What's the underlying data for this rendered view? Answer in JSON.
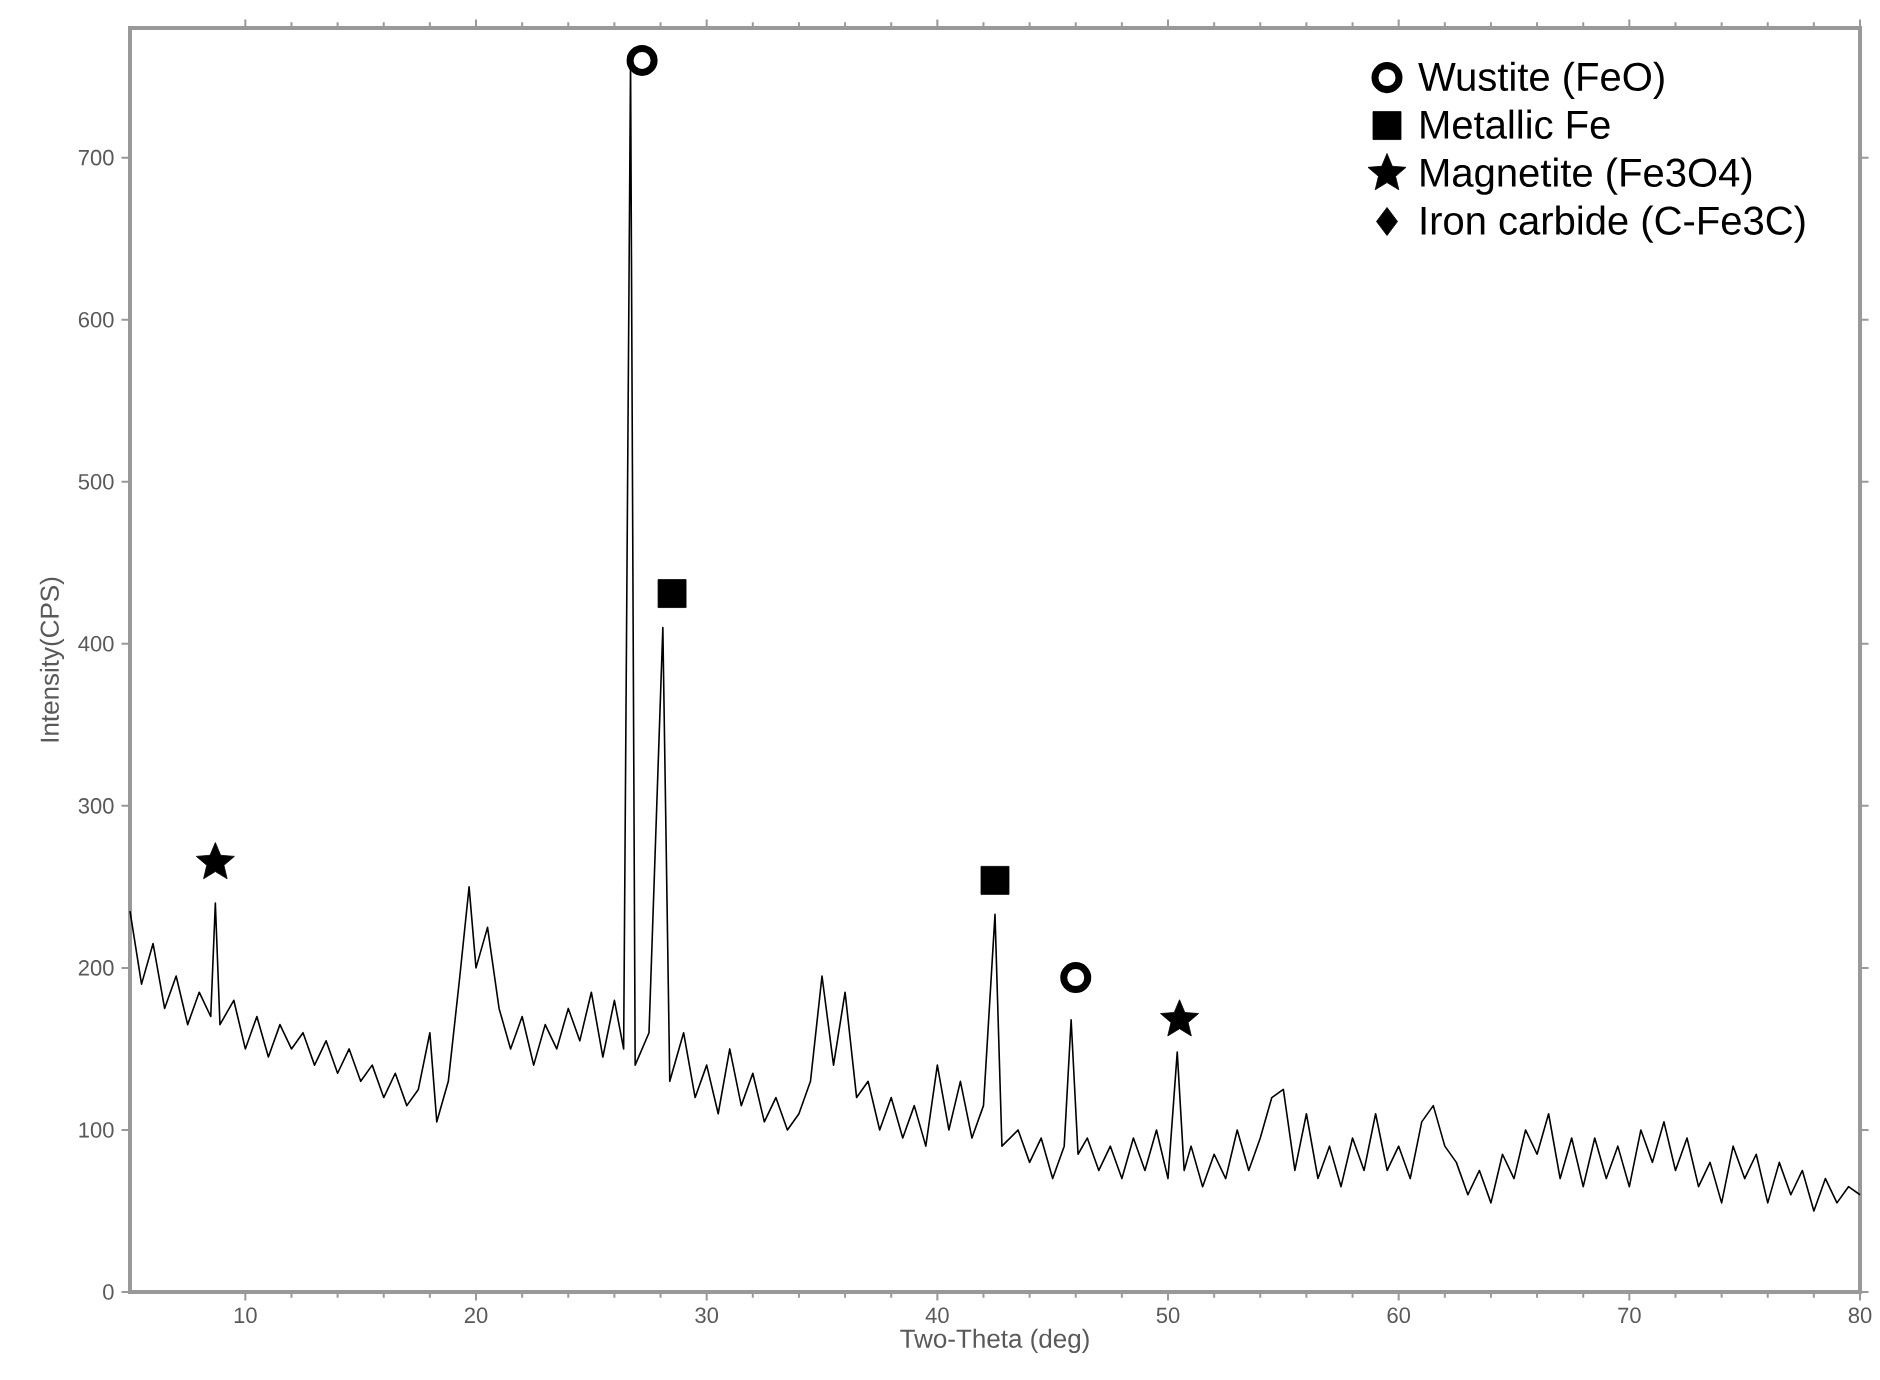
{
  "chart_data": {
    "type": "line",
    "xlabel": "Two-Theta (deg)",
    "ylabel": "Intensity(CPS)",
    "xlim": [
      5,
      80
    ],
    "ylim": [
      0,
      780
    ],
    "xticks": [
      10,
      20,
      30,
      40,
      50,
      60,
      70,
      80
    ],
    "yticks": [
      0,
      100,
      200,
      300,
      400,
      500,
      600,
      700
    ],
    "legend": "top right",
    "series": [
      {
        "color": "#000000",
        "x": [
          5.0,
          5.5,
          6.0,
          6.5,
          7.0,
          7.5,
          8.0,
          8.5,
          8.7,
          8.9,
          9.5,
          10.0,
          10.5,
          11.0,
          11.5,
          12.0,
          12.5,
          13.0,
          13.5,
          14.0,
          14.5,
          15.0,
          15.5,
          16.0,
          16.5,
          17.0,
          17.5,
          18.0,
          18.3,
          18.8,
          19.3,
          19.7,
          20.0,
          20.5,
          21.0,
          21.5,
          22.0,
          22.5,
          23.0,
          23.5,
          24.0,
          24.5,
          25.0,
          25.5,
          26.0,
          26.4,
          26.7,
          26.9,
          27.5,
          28.1,
          28.4,
          29.0,
          29.5,
          30.0,
          30.5,
          31.0,
          31.5,
          32.0,
          32.5,
          33.0,
          33.5,
          34.0,
          34.5,
          35.0,
          35.5,
          36.0,
          36.5,
          37.0,
          37.5,
          38.0,
          38.5,
          39.0,
          39.5,
          40.0,
          40.5,
          41.0,
          41.5,
          42.0,
          42.5,
          42.8,
          43.5,
          44.0,
          44.5,
          45.0,
          45.5,
          45.8,
          46.1,
          46.5,
          47.0,
          47.5,
          48.0,
          48.5,
          49.0,
          49.5,
          50.0,
          50.4,
          50.7,
          51.0,
          51.5,
          52.0,
          52.5,
          53.0,
          53.5,
          54.0,
          54.5,
          55.0,
          55.5,
          56.0,
          56.5,
          57.0,
          57.5,
          58.0,
          58.5,
          59.0,
          59.5,
          60.0,
          60.5,
          61.0,
          61.5,
          62.0,
          62.5,
          63.0,
          63.5,
          64.0,
          64.5,
          65.0,
          65.5,
          66.0,
          66.5,
          67.0,
          67.5,
          68.0,
          68.5,
          69.0,
          69.5,
          70.0,
          70.5,
          71.0,
          71.5,
          72.0,
          72.5,
          73.0,
          73.5,
          74.0,
          74.5,
          75.0,
          75.5,
          76.0,
          76.5,
          77.0,
          77.5,
          78.0,
          78.5,
          79.0,
          79.5,
          80.0
        ],
        "values": [
          235,
          190,
          215,
          175,
          195,
          165,
          185,
          170,
          240,
          165,
          180,
          150,
          170,
          145,
          165,
          150,
          160,
          140,
          155,
          135,
          150,
          130,
          140,
          120,
          135,
          115,
          125,
          160,
          105,
          130,
          195,
          250,
          200,
          225,
          175,
          150,
          170,
          140,
          165,
          150,
          175,
          155,
          185,
          145,
          180,
          150,
          760,
          140,
          160,
          410,
          130,
          160,
          120,
          140,
          110,
          150,
          115,
          135,
          105,
          120,
          100,
          110,
          130,
          195,
          140,
          185,
          120,
          130,
          100,
          120,
          95,
          115,
          90,
          140,
          100,
          130,
          95,
          115,
          233,
          90,
          100,
          80,
          95,
          70,
          90,
          168,
          85,
          95,
          75,
          90,
          70,
          95,
          75,
          100,
          70,
          148,
          75,
          90,
          65,
          85,
          70,
          100,
          75,
          95,
          120,
          125,
          75,
          110,
          70,
          90,
          65,
          95,
          75,
          110,
          75,
          90,
          70,
          105,
          115,
          90,
          80,
          60,
          75,
          55,
          85,
          70,
          100,
          85,
          110,
          70,
          95,
          65,
          95,
          70,
          90,
          65,
          100,
          80,
          105,
          75,
          95,
          65,
          80,
          55,
          90,
          70,
          85,
          55,
          80,
          60,
          75,
          50,
          70,
          55,
          65,
          60
        ]
      },
      {
        "name": "Wustite (FeO)",
        "type": "scatter",
        "marker": "circle",
        "color": "#000000",
        "x": [
          27.2,
          46.0
        ],
        "values": [
          760,
          194
        ]
      },
      {
        "name": "Metallic Fe",
        "type": "scatter",
        "marker": "square",
        "color": "#000000",
        "x": [
          28.5,
          42.5
        ],
        "values": [
          431,
          254
        ]
      },
      {
        "name": "Magnetite (Fe3O4)",
        "type": "scatter",
        "marker": "star",
        "color": "#000000",
        "x": [
          8.7,
          50.5
        ],
        "values": [
          265,
          168
        ]
      },
      {
        "name": "Iron carbide (C-Fe3C)",
        "type": "scatter",
        "marker": "diamond",
        "color": "#000000"
      }
    ]
  }
}
